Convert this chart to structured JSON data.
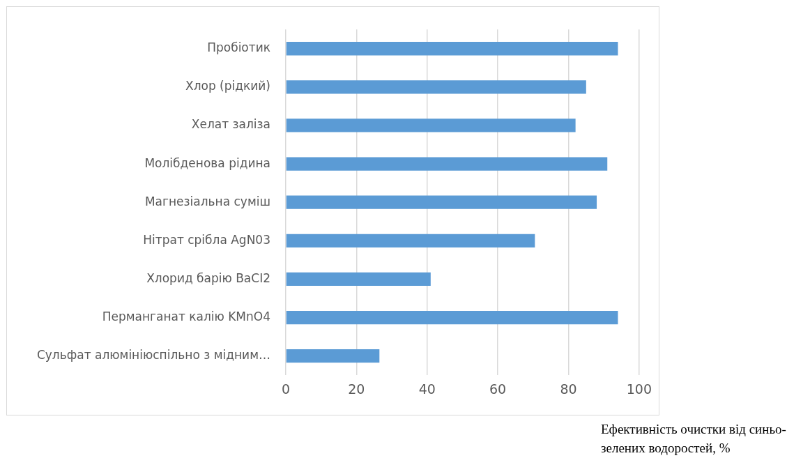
{
  "chart_data": {
    "type": "bar",
    "orientation": "horizontal",
    "xlabel": "Ефективність очистки від синьо-зелених водоростей, %",
    "categories": [
      "Пробіотик",
      "Хлор (рідкий)",
      "Хелат заліза",
      "Молібденова рідина",
      "Магнезіальна суміш",
      "Нітрат срібла AgN03",
      "Хлорид барію BaCI2",
      "Перманганат калію KMnO4",
      "Сульфат алюмініюспільно з мідним…"
    ],
    "values": [
      94,
      85,
      82,
      91,
      88,
      70.5,
      41,
      94,
      26.5
    ],
    "color": "#5b9bd5",
    "xlim": [
      0,
      100
    ],
    "xticks": [
      0,
      20,
      40,
      60,
      80,
      100
    ],
    "grid": "x"
  }
}
